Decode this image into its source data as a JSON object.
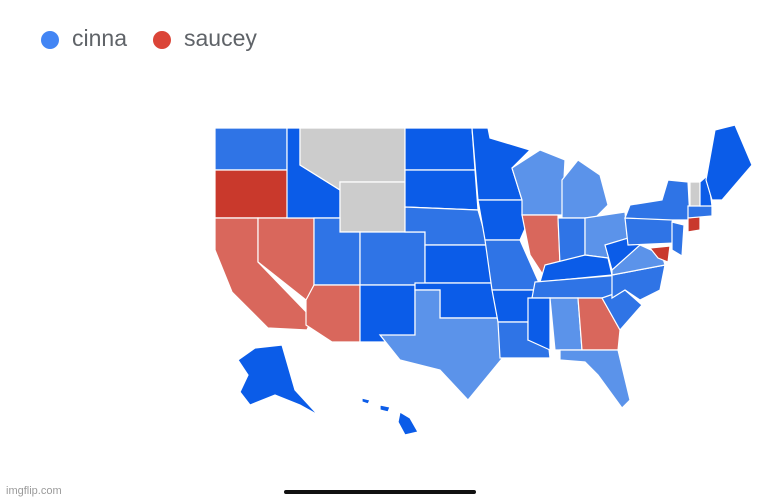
{
  "legend": [
    {
      "name": "cinna",
      "color": "#4285f4"
    },
    {
      "name": "saucey",
      "color": "#db4437"
    }
  ],
  "watermark": "imgflip.com"
}
